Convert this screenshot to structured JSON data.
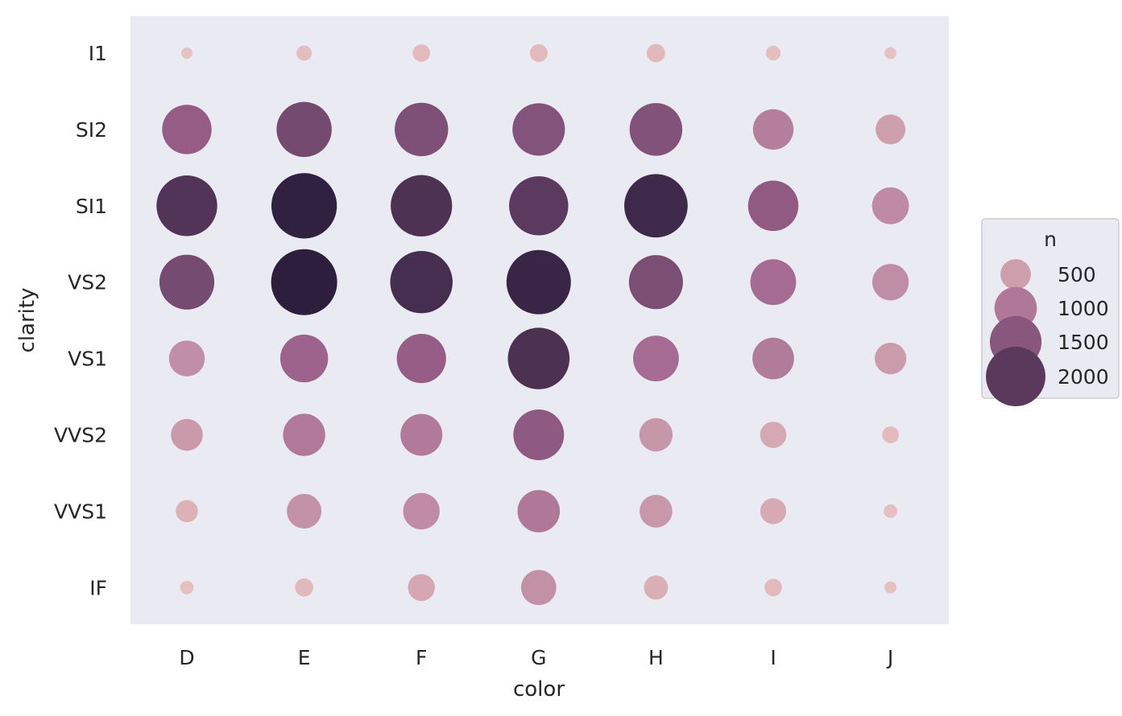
{
  "chart_data": {
    "type": "scatter",
    "subtype": "bubble-grid",
    "xlabel": "color",
    "ylabel": "clarity",
    "x_categories": [
      "D",
      "E",
      "F",
      "G",
      "H",
      "I",
      "J"
    ],
    "y_categories": [
      "I1",
      "SI2",
      "SI1",
      "VS2",
      "VS1",
      "VVS2",
      "VVS1",
      "IF"
    ],
    "values": {
      "I1": [
        42,
        102,
        143,
        150,
        162,
        92,
        50
      ],
      "SI2": [
        1370,
        1713,
        1609,
        1548,
        1563,
        912,
        479
      ],
      "SI1": [
        2083,
        2426,
        2131,
        1976,
        2275,
        1424,
        750
      ],
      "VS2": [
        1697,
        2470,
        2201,
        2347,
        1643,
        1169,
        731
      ],
      "VS1": [
        705,
        1281,
        1364,
        2148,
        1169,
        962,
        542
      ],
      "VVS2": [
        553,
        991,
        975,
        1443,
        608,
        365,
        131
      ],
      "VVS1": [
        252,
        656,
        734,
        999,
        585,
        355,
        74
      ],
      "IF": [
        73,
        158,
        385,
        681,
        299,
        143,
        51
      ]
    },
    "size_range": [
      42,
      2470
    ],
    "legend": {
      "title": "n",
      "entries": [
        {
          "label": "500",
          "value": 500
        },
        {
          "label": "1000",
          "value": 1000
        },
        {
          "label": "1500",
          "value": 1500
        },
        {
          "label": "2000",
          "value": 2000
        }
      ],
      "placement": "right"
    },
    "grid": false,
    "colors": {
      "panel_background": "#eaeaf2",
      "legend_background": "#eaeaf2",
      "legend_border": "#cccccc",
      "palette_low": "#e8c2c0",
      "palette_mid": "#a0648e",
      "palette_high": "#2d1e3e"
    }
  }
}
